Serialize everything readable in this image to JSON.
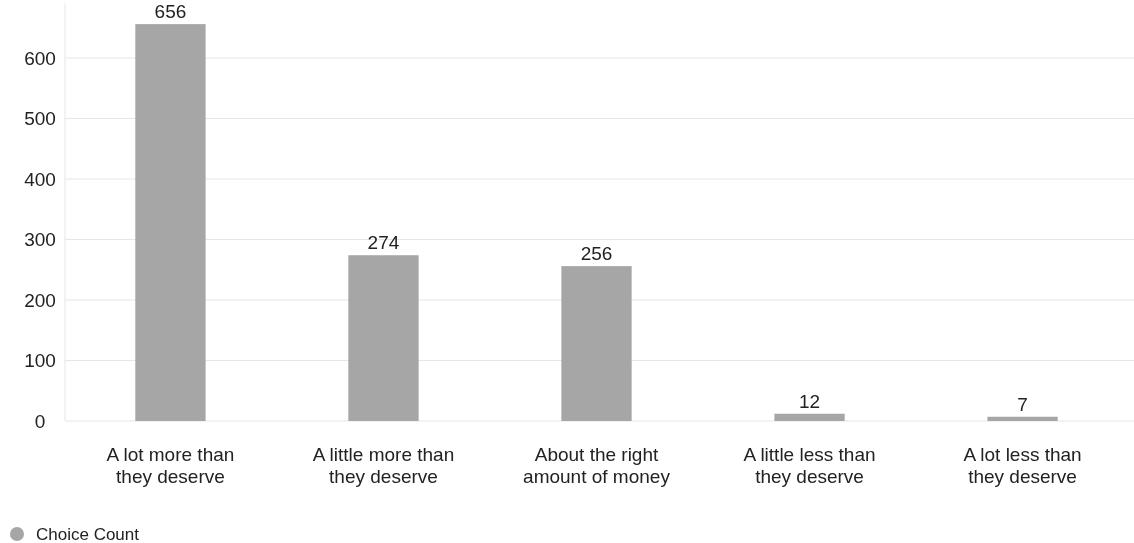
{
  "chart_data": {
    "type": "bar",
    "categories": [
      "A lot more than they deserve",
      "A little more than they deserve",
      "About the right amount of money",
      "A little less than they deserve",
      "A lot less than they deserve"
    ],
    "series": [
      {
        "name": "Choice Count",
        "color": "#a6a6a6",
        "values": [
          656,
          274,
          256,
          12,
          7
        ]
      }
    ],
    "ylim": [
      0,
      690
    ],
    "yticks": [
      0,
      100,
      200,
      300,
      400,
      500,
      600
    ],
    "grid": "y",
    "data_labels": true,
    "legend": "bottom left"
  }
}
